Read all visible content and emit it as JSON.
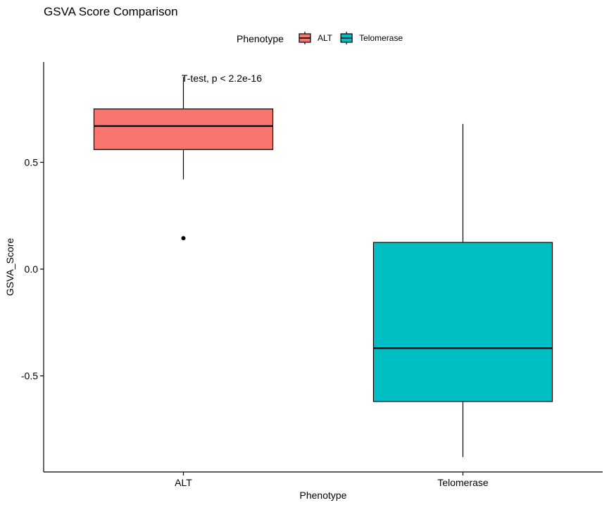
{
  "chart_data": {
    "type": "box",
    "title": "GSVA Score Comparison",
    "xlabel": "Phenotype",
    "ylabel": "GSVA_Score",
    "ylim": [
      -0.95,
      0.97
    ],
    "yticks": [
      0.5,
      0.0,
      -0.5
    ],
    "ytick_labels": [
      "0.5",
      "0.0",
      "-0.5"
    ],
    "grid": false,
    "legend": {
      "title": "Phenotype",
      "placement": "top",
      "entries": [
        {
          "label": "ALT",
          "color": "#F8766D"
        },
        {
          "label": "Telomerase",
          "color": "#00BFC4"
        }
      ]
    },
    "annotation": "T-test, p < 2.2e-16",
    "categories": [
      "ALT",
      "Telomerase"
    ],
    "boxes": [
      {
        "category": "ALT",
        "color": "#F8766D",
        "whisker_low": 0.42,
        "q1": 0.56,
        "median": 0.67,
        "q3": 0.75,
        "whisker_high": 0.9,
        "outliers": [
          0.145
        ]
      },
      {
        "category": "Telomerase",
        "color": "#00BFC4",
        "whisker_low": -0.88,
        "q1": -0.62,
        "median": -0.37,
        "q3": 0.125,
        "whisker_high": 0.68,
        "outliers": []
      }
    ]
  }
}
